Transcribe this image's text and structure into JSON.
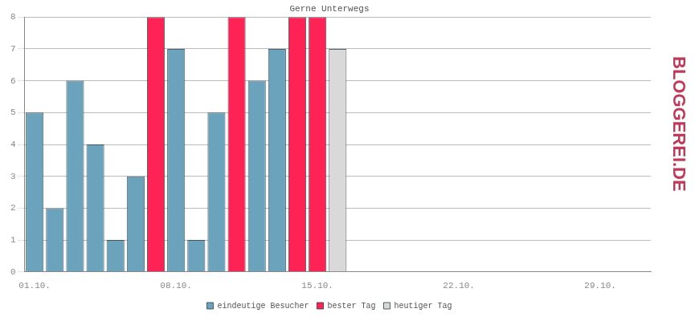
{
  "chart_data": {
    "type": "bar",
    "title": "Gerne Unterwegs",
    "annotation": "BLOGGEREI.DE",
    "categories": [
      "01.10.",
      null,
      null,
      null,
      null,
      null,
      null,
      "08.10.",
      null,
      null,
      null,
      null,
      null,
      null,
      "15.10.",
      null,
      null,
      null,
      null,
      null,
      null,
      "22.10.",
      null,
      null,
      null,
      null,
      null,
      null,
      "29.10.",
      null,
      null
    ],
    "series": [
      {
        "name": "eindeutige Besucher",
        "color": "#6ba3bc",
        "values": [
          5,
          2,
          6,
          4,
          1,
          3,
          null,
          7,
          1,
          5,
          null,
          6,
          7,
          null,
          null,
          null,
          null,
          null,
          null,
          null,
          null,
          null,
          null,
          null,
          null,
          null,
          null,
          null,
          null,
          null,
          null
        ]
      },
      {
        "name": "bester Tag",
        "color": "#ff2255",
        "values": [
          null,
          null,
          null,
          null,
          null,
          null,
          8,
          null,
          null,
          null,
          8,
          null,
          null,
          8,
          8,
          null,
          null,
          null,
          null,
          null,
          null,
          null,
          null,
          null,
          null,
          null,
          null,
          null,
          null,
          null,
          null
        ]
      },
      {
        "name": "heutiger Tag",
        "color": "#d9d9d9",
        "values": [
          null,
          null,
          null,
          null,
          null,
          null,
          null,
          null,
          null,
          null,
          null,
          null,
          null,
          null,
          null,
          7,
          null,
          null,
          null,
          null,
          null,
          null,
          null,
          null,
          null,
          null,
          null,
          null,
          null,
          null,
          null
        ]
      }
    ],
    "stacked": true,
    "ylim": [
      0,
      8
    ],
    "yticks": [
      0,
      1,
      2,
      3,
      4,
      5,
      6,
      7,
      8
    ],
    "grid": true,
    "legend": "bottom"
  }
}
